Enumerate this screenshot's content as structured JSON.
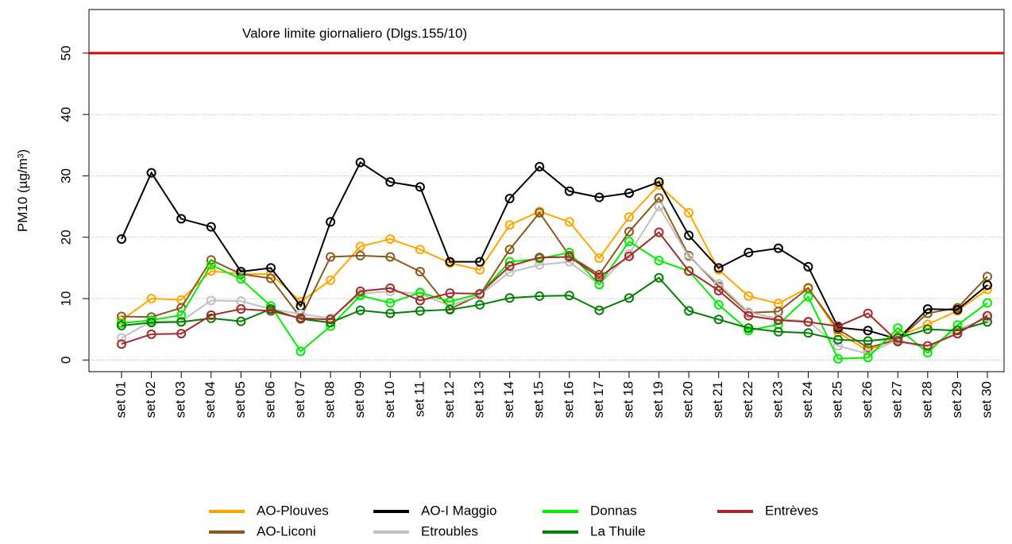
{
  "chart_data": {
    "type": "line",
    "ylabel": "PM10 (µg/m³)",
    "categories": [
      "set 01",
      "set 02",
      "set 03",
      "set 04",
      "set 05",
      "set 06",
      "set 07",
      "set 08",
      "set 09",
      "set 10",
      "set 11",
      "set 12",
      "set 13",
      "set 14",
      "set 15",
      "set 16",
      "set 17",
      "set 18",
      "set 19",
      "set 20",
      "set 21",
      "set 22",
      "set 23",
      "set 24",
      "set 25",
      "set 26",
      "set 27",
      "set 28",
      "set 29",
      "set 30"
    ],
    "ylim": [
      -1.9,
      57.1
    ],
    "yticks": [
      0,
      10,
      20,
      30,
      40,
      50
    ],
    "grid": true,
    "hline": {
      "value": 50,
      "label": "Valore limite giornaliero (Dlgs.155/10)",
      "color": "#e00000"
    },
    "series": [
      {
        "name": "AO-Plouves",
        "color": "#ffa500",
        "values": [
          6.5,
          10,
          9.8,
          14.5,
          14,
          14,
          9.5,
          13,
          18.5,
          19.7,
          18,
          15.8,
          14.7,
          22,
          24.2,
          22.5,
          16.6,
          23.3,
          28.5,
          24,
          14.7,
          10.4,
          9.2,
          11.8,
          4.5,
          1.5,
          3.8,
          5.8,
          8,
          11.5
        ]
      },
      {
        "name": "AO-Liconi",
        "color": "#8b5a1b",
        "values": [
          7.1,
          7,
          8.5,
          16.3,
          14,
          13.3,
          6.9,
          16.8,
          17,
          16.8,
          14.4,
          8.3,
          10.6,
          18,
          24,
          17,
          13.9,
          20.9,
          26.4,
          17,
          12,
          7.7,
          7.9,
          11.7,
          5,
          2,
          3.3,
          7.6,
          8.5,
          13.6
        ]
      },
      {
        "name": "AO-I Maggio",
        "color": "#000000",
        "values": [
          19.7,
          30.5,
          23,
          21.7,
          14.4,
          15,
          8.8,
          22.5,
          32.2,
          29,
          28.2,
          16,
          16,
          26.3,
          31.5,
          27.5,
          26.5,
          27.2,
          29,
          20.3,
          15,
          17.5,
          18.2,
          15.2,
          5.3,
          4.8,
          3.4,
          8.3,
          8.2,
          12.2
        ]
      },
      {
        "name": "Etroubles",
        "color": "#c0c0c0",
        "values": [
          3.6,
          6.3,
          6.3,
          9.7,
          9.6,
          8.3,
          7.5,
          6.8,
          10.8,
          11.2,
          10.8,
          8.8,
          10.6,
          14.3,
          15.5,
          16,
          12.3,
          17.3,
          25,
          16.8,
          12.4,
          7.8,
          6.7,
          6.3,
          2.3,
          1,
          3.4,
          1.8,
          5,
          6.8
        ]
      },
      {
        "name": "Donnas",
        "color": "#00ee00",
        "values": [
          6,
          6.5,
          7.3,
          15.5,
          13.2,
          8.8,
          1.4,
          5.5,
          10.5,
          9.3,
          11,
          9.5,
          10.8,
          16,
          16.5,
          17.5,
          12.3,
          19.3,
          16.2,
          14.5,
          9,
          4.8,
          5.8,
          10.3,
          0.2,
          0.4,
          5.2,
          1.2,
          5.7,
          9.3
        ]
      },
      {
        "name": "La Thuile",
        "color": "#008000",
        "values": [
          5.6,
          6.1,
          6.2,
          6.8,
          6.3,
          8.3,
          6.7,
          6.1,
          8.1,
          7.6,
          8,
          8.2,
          9,
          10.1,
          10.4,
          10.5,
          8.1,
          10.1,
          13.4,
          8,
          6.6,
          5.2,
          4.6,
          4.4,
          3.3,
          3.1,
          3.6,
          5,
          4.8,
          6.2
        ]
      },
      {
        "name": "Entrèves",
        "color": "#a52a2a",
        "values": [
          2.6,
          4.2,
          4.3,
          7.3,
          8.3,
          8,
          6.8,
          6.6,
          11.2,
          11.7,
          9.7,
          10.9,
          10.8,
          15.3,
          16.7,
          16.8,
          13.5,
          16.9,
          20.8,
          14.5,
          11.3,
          7.2,
          6.5,
          6.2,
          5.5,
          7.6,
          3,
          2.3,
          4.3,
          7.2
        ]
      }
    ]
  }
}
